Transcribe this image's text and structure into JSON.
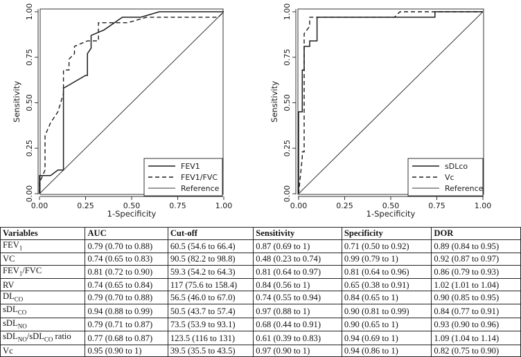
{
  "chart_data": [
    {
      "type": "line",
      "title": "",
      "xlabel": "1-Specificity",
      "ylabel": "Sensitivity",
      "xlim": [
        0,
        1
      ],
      "ylim": [
        0,
        1
      ],
      "x_ticks": [
        "0.00",
        "0.25",
        "0.50",
        "0.75",
        "1.00"
      ],
      "y_ticks": [
        "0.00",
        "0.25",
        "0.50",
        "0.75",
        "1.00"
      ],
      "grid": false,
      "legend_position": "bottom-right",
      "series": [
        {
          "name": "FEV1",
          "style": "solid",
          "x": [
            0,
            0,
            0.06,
            0.1,
            0.12,
            0.13,
            0.13,
            0.25,
            0.26,
            0.26,
            0.28,
            0.28,
            0.35,
            0.45,
            0.45,
            0.55,
            0.65,
            1.0
          ],
          "y": [
            0,
            0.1,
            0.1,
            0.13,
            0.13,
            0.13,
            0.58,
            0.65,
            0.65,
            0.77,
            0.8,
            0.87,
            0.9,
            0.97,
            0.97,
            0.97,
            1.0,
            1.0
          ]
        },
        {
          "name": "FEV1/FVC",
          "style": "dashed",
          "x": [
            0,
            0,
            0.03,
            0.03,
            0.06,
            0.1,
            0.13,
            0.13,
            0.16,
            0.16,
            0.19,
            0.19,
            0.26,
            0.29,
            0.32,
            0.32,
            0.48,
            0.58,
            0.58,
            0.97,
            1.0
          ],
          "y": [
            0,
            0.06,
            0.13,
            0.32,
            0.39,
            0.45,
            0.55,
            0.68,
            0.68,
            0.74,
            0.77,
            0.81,
            0.84,
            0.84,
            0.84,
            0.94,
            0.94,
            0.97,
            0.97,
            0.97,
            1.0
          ]
        },
        {
          "name": "Reference",
          "style": "solid-thin",
          "x": [
            0,
            1
          ],
          "y": [
            0,
            1
          ]
        }
      ]
    },
    {
      "type": "line",
      "title": "",
      "xlabel": "1-Specificity",
      "ylabel": "Sensitivity",
      "xlim": [
        0,
        1
      ],
      "ylim": [
        0,
        1
      ],
      "x_ticks": [
        "0.00",
        "0.25",
        "0.50",
        "0.75",
        "1.00"
      ],
      "y_ticks": [
        "0.00",
        "0.25",
        "0.50",
        "0.75",
        "1.00"
      ],
      "grid": false,
      "legend_position": "bottom-right",
      "series": [
        {
          "name": "sDLco",
          "style": "solid",
          "x": [
            0,
            0,
            0.02,
            0.02,
            0.03,
            0.03,
            0.06,
            0.06,
            0.1,
            0.1,
            0.74,
            0.74,
            1.0
          ],
          "y": [
            0,
            0.45,
            0.45,
            0.68,
            0.68,
            0.81,
            0.81,
            0.84,
            0.84,
            0.97,
            0.97,
            1.0,
            1.0
          ]
        },
        {
          "name": "Vc",
          "style": "dashed",
          "x": [
            0,
            0.02,
            0.02,
            0.03,
            0.03,
            0.06,
            0.06,
            0.52,
            0.55,
            0.55,
            1.0
          ],
          "y": [
            0,
            0.2,
            0.23,
            0.23,
            0.88,
            0.92,
            0.97,
            0.97,
            1.0,
            1.0,
            1.0
          ]
        },
        {
          "name": "Reference",
          "style": "solid-thin",
          "x": [
            0,
            1
          ],
          "y": [
            0,
            1
          ]
        }
      ]
    },
    {
      "type": "table",
      "columns": [
        "Variables",
        "AUC",
        "Cut-off",
        "Sensitivity",
        "Specificity",
        "DOR"
      ],
      "rows": [
        {
          "var": "FEV",
          "sub": "1",
          "tail": "",
          "auc": "0.79 (0.70 to 0.88)",
          "cutoff": "60.5 (54.6 to 66.4)",
          "sens": "0.87 (0.69 to 1)",
          "spec": "0.71 (0.50 to 0.92)",
          "dor": "0.89 (0.84 to 0.95)"
        },
        {
          "var": "VC",
          "sub": "",
          "tail": "",
          "auc": "0.74 (0.65 to 0.83)",
          "cutoff": "90.5 (82.2 to 98.8)",
          "sens": "0.48 (0.23 to 0.74)",
          "spec": "0.99 (0.79 to 1)",
          "dor": "0.92 (0.87 to 0.97)"
        },
        {
          "var": "FEV",
          "sub": "1",
          "tail": "/FVC",
          "auc": "0.81 (0.72 to 0.90)",
          "cutoff": "59.3 (54.2 to 64.3)",
          "sens": "0.81 (0.64 to 0.97)",
          "spec": "0.81 (0.64 to 0.96)",
          "dor": "0.86 (0.79 to 0.93)"
        },
        {
          "var": "RV",
          "sub": "",
          "tail": "",
          "auc": "0.74 (0.65 to 0.84)",
          "cutoff": "117 (75.6 to 158.4)",
          "sens": "0.84 (0.56 to 1)",
          "spec": "0.65 (0.38 to 0.91)",
          "dor": "1.02 (1.01 to 1.04)"
        },
        {
          "var": "DL",
          "sub": "CO",
          "tail": "",
          "auc": "0.79 (0.70 to 0.88)",
          "cutoff": "56.5 (46.0 to 67.0)",
          "sens": "0.74 (0.55 to 0.94)",
          "spec": "0.84 (0.65 to 1)",
          "dor": "0.90 (0.85 to 0.95)"
        },
        {
          "var": "sDL",
          "sub": "CO",
          "tail": "",
          "auc": "0.94 (0.88 to 0.99)",
          "cutoff": "50.5 (43.7 to 57.4)",
          "sens": "0.97 (0.88 to 1)",
          "spec": "0.90 (0.81 to 0.99)",
          "dor": "0.84 (0.77 to 0.91)"
        },
        {
          "var": "sDL",
          "sub": "NO",
          "tail": "",
          "auc": "0.79 (0.71 to 0.87)",
          "cutoff": "73.5 (53.9 to 93.1)",
          "sens": "0.68 (0.44 to 0.91)",
          "spec": "0.90 (0.65 to 1)",
          "dor": "0.93 (0.90 to 0.96)"
        },
        {
          "var": "sDL",
          "sub": "NO",
          "tail": "/sDL",
          "sub2": "CO",
          "tail2": " ratio",
          "auc": "0.77 (0.68 to 0.87)",
          "cutoff": "123.5 (116 to 131)",
          "sens": "0.61 (0.39 to 0.83)",
          "spec": "0.94 (0.69 to 1)",
          "dor": "1.09 (1.04 to 1.14)"
        },
        {
          "var": "Vc",
          "sub": "",
          "tail": "",
          "auc": "0.95 (0.90 to 1)",
          "cutoff": "39.5 (35.5 to 43.5)",
          "sens": "0.97 (0.90 to 1)",
          "spec": "0.94 (0.86 to 1)",
          "dor": "0.82 (0.75 to 0.90)"
        }
      ]
    }
  ]
}
